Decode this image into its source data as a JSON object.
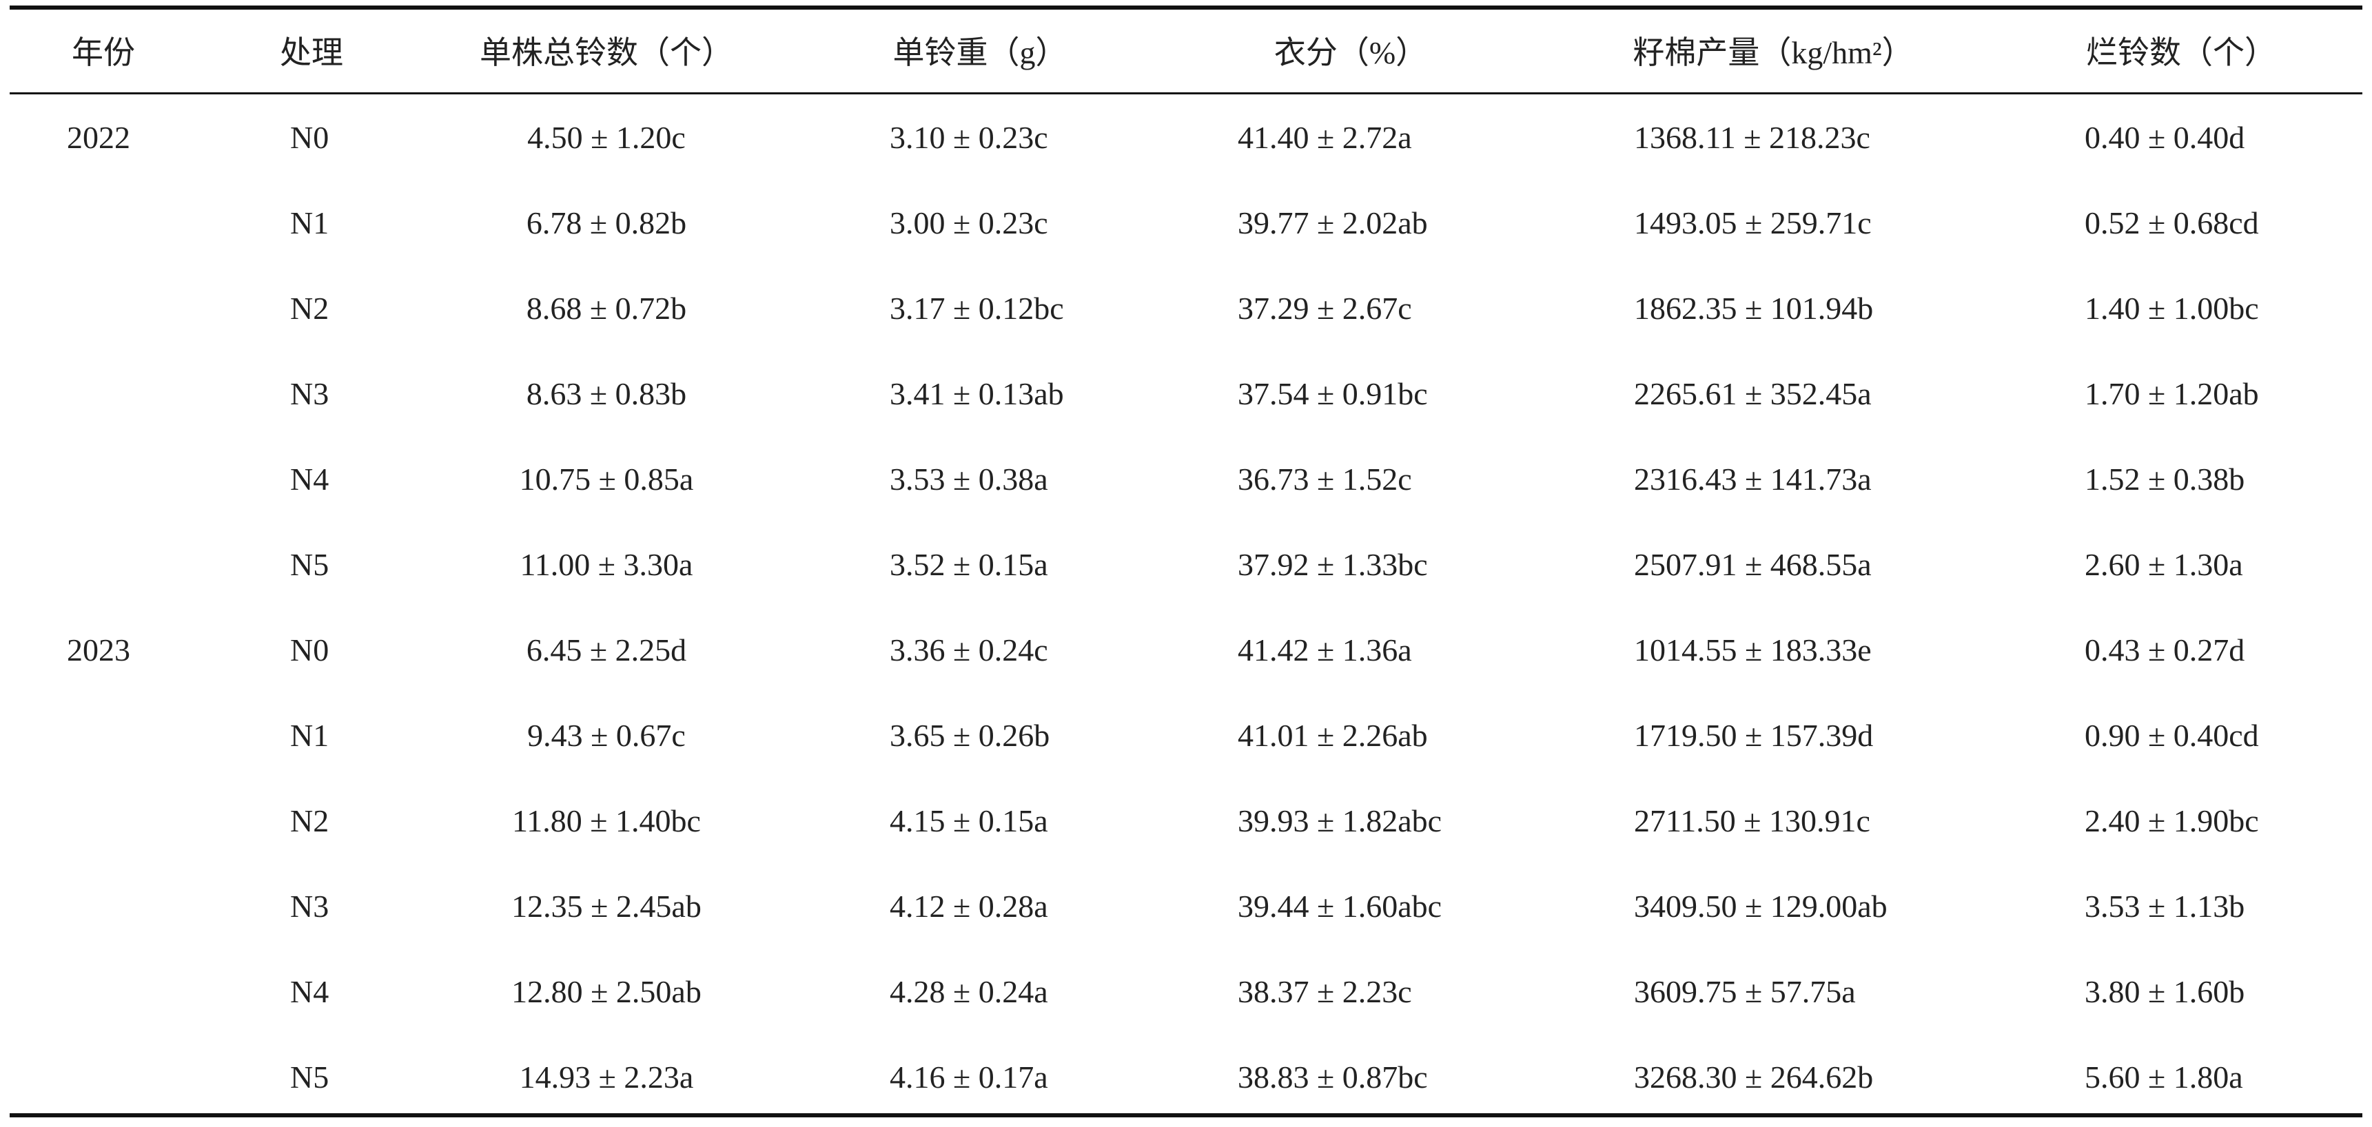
{
  "table": {
    "header": [
      "年份",
      "处理",
      "单株总铃数（个）",
      "单铃重（g）",
      "衣分（%）",
      "籽棉产量（kg/hm²）",
      "烂铃数（个）"
    ],
    "groups": [
      {
        "year": "2022",
        "rows": [
          [
            "N0",
            "4.50 ± 1.20c",
            "3.10 ± 0.23c",
            "41.40 ± 2.72a",
            "1368.11 ± 218.23c",
            "0.40 ± 0.40d"
          ],
          [
            "N1",
            "6.78 ± 0.82b",
            "3.00 ± 0.23c",
            "39.77 ± 2.02ab",
            "1493.05 ± 259.71c",
            "0.52 ± 0.68cd"
          ],
          [
            "N2",
            "8.68 ± 0.72b",
            "3.17 ± 0.12bc",
            "37.29 ± 2.67c",
            "1862.35 ± 101.94b",
            "1.40 ± 1.00bc"
          ],
          [
            "N3",
            "8.63 ± 0.83b",
            "3.41 ± 0.13ab",
            "37.54 ± 0.91bc",
            "2265.61 ± 352.45a",
            "1.70 ± 1.20ab"
          ],
          [
            "N4",
            "10.75 ± 0.85a",
            "3.53 ± 0.38a",
            "36.73 ± 1.52c",
            "2316.43 ± 141.73a",
            "1.52 ± 0.38b"
          ],
          [
            "N5",
            "11.00 ± 3.30a",
            "3.52 ± 0.15a",
            "37.92 ± 1.33bc",
            "2507.91 ± 468.55a",
            "2.60 ± 1.30a"
          ]
        ]
      },
      {
        "year": "2023",
        "rows": [
          [
            "N0",
            "6.45 ± 2.25d",
            "3.36 ± 0.24c",
            "41.42 ± 1.36a",
            "1014.55 ± 183.33e",
            "0.43 ± 0.27d"
          ],
          [
            "N1",
            "9.43 ± 0.67c",
            "3.65 ± 0.26b",
            "41.01 ± 2.26ab",
            "1719.50 ± 157.39d",
            "0.90 ± 0.40cd"
          ],
          [
            "N2",
            "11.80 ± 1.40bc",
            "4.15 ± 0.15a",
            "39.93 ± 1.82abc",
            "2711.50 ± 130.91c",
            "2.40 ± 1.90bc"
          ],
          [
            "N3",
            "12.35 ± 2.45ab",
            "4.12 ± 0.28a",
            "39.44 ± 1.60abc",
            "3409.50 ± 129.00ab",
            "3.53 ± 1.13b"
          ],
          [
            "N4",
            "12.80 ± 2.50ab",
            "4.28 ± 0.24a",
            "38.37 ± 2.23c",
            "3609.75 ± 57.75a",
            "3.80 ± 1.60b"
          ],
          [
            "N5",
            "14.93 ± 2.23a",
            "4.16 ± 0.17a",
            "38.83 ± 0.87bc",
            "3268.30 ± 264.62b",
            "5.60 ± 1.80a"
          ]
        ]
      }
    ]
  }
}
